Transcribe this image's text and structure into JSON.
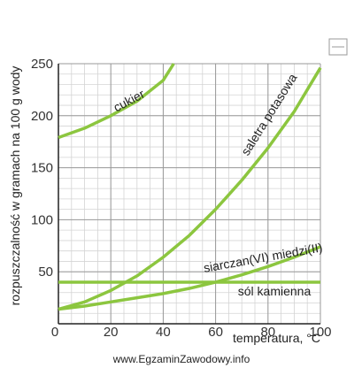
{
  "chart_data": {
    "type": "line",
    "y_label": "rozpuszczalność w gramach na 100 g wody",
    "x_label": "temperatura, °C",
    "watermark": "www.EgzaminZawodowy.info",
    "xlim": [
      0,
      100
    ],
    "xticks": [
      0,
      20,
      40,
      60,
      80,
      100
    ],
    "ylim": [
      0,
      250
    ],
    "yticks": [
      50,
      100,
      150,
      200,
      250
    ],
    "grid": true,
    "series": [
      {
        "name": "cukier",
        "color": "#8cc63f",
        "x": [
          0,
          10,
          20,
          30,
          40,
          44
        ],
        "values": [
          179,
          188,
          200,
          214,
          234,
          250
        ]
      },
      {
        "name": "saletra potasowa",
        "color": "#8cc63f",
        "x": [
          0,
          10,
          20,
          30,
          40,
          50,
          60,
          70,
          80,
          90,
          100
        ],
        "values": [
          14,
          21,
          32,
          46,
          64,
          85,
          110,
          138,
          169,
          204,
          246
        ]
      },
      {
        "name": "siarczan(VI) miedzi(II)",
        "color": "#8cc63f",
        "x": [
          0,
          10,
          20,
          30,
          40,
          50,
          60,
          70,
          80,
          90,
          100
        ],
        "values": [
          14,
          17,
          21,
          25,
          29,
          34,
          40,
          47,
          55,
          64,
          74
        ]
      },
      {
        "name": "sól kamienna",
        "color": "#8cc63f",
        "x": [
          0,
          100
        ],
        "values": [
          40,
          40
        ]
      }
    ]
  }
}
